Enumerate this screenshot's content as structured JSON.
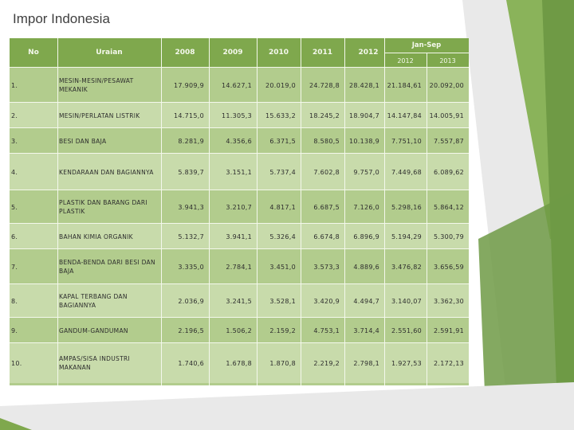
{
  "title": "Impor Indonesia",
  "colors": {
    "header": "#7fa84d",
    "row_a": "#b2cc8d",
    "row_b": "#c8dbab",
    "accent_green": "#6f9a45",
    "light_gray": "#e9e9e9"
  },
  "table": {
    "headers": {
      "no": "No",
      "uraian": "Uraian",
      "y2008": "2008",
      "y2009": "2009",
      "y2010": "2010",
      "y2011": "2011",
      "y2012": "2012",
      "jan_sep": "Jan-Sep",
      "js2012": "2012",
      "js2013": "2013"
    },
    "rows": [
      {
        "no": "1.",
        "uraian": "MESIN-MESIN/PESAWAT MEKANIK",
        "v2008": "17.909,9",
        "v2009": "14.627,1",
        "v2010": "20.019,0",
        "v2011": "24.728,8",
        "v2012": "28.428,1",
        "js2012": "21.184,61",
        "js2013": "20.092,00"
      },
      {
        "no": "2.",
        "uraian": "MESIN/PERLATAN LISTRIK",
        "v2008": "14.715,0",
        "v2009": "11.305,3",
        "v2010": "15.633,2",
        "v2011": "18.245,2",
        "v2012": "18.904,7",
        "js2012": "14.147,84",
        "js2013": "14.005,91"
      },
      {
        "no": "3.",
        "uraian": "BESI DAN BAJA",
        "v2008": "8.281,9",
        "v2009": "4.356,6",
        "v2010": "6.371,5",
        "v2011": "8.580,5",
        "v2012": "10.138,9",
        "js2012": "7.751,10",
        "js2013": "7.557,87"
      },
      {
        "no": "4.",
        "uraian": "KENDARAAN DAN BAGIANNYA",
        "v2008": "5.839,7",
        "v2009": "3.151,1",
        "v2010": "5.737,4",
        "v2011": "7.602,8",
        "v2012": "9.757,0",
        "js2012": "7.449,68",
        "js2013": "6.089,62"
      },
      {
        "no": "5.",
        "uraian": "PLASTIK DAN BARANG DARI PLASTIK",
        "v2008": "3.941,3",
        "v2009": "3.210,7",
        "v2010": "4.817,1",
        "v2011": "6.687,5",
        "v2012": "7.126,0",
        "js2012": "5.298,16",
        "js2013": "5.864,12"
      },
      {
        "no": "6.",
        "uraian": "BAHAN KIMIA ORGANIK",
        "v2008": "5.132,7",
        "v2009": "3.941,1",
        "v2010": "5.326,4",
        "v2011": "6.674,8",
        "v2012": "6.896,9",
        "js2012": "5.194,29",
        "js2013": "5.300,79"
      },
      {
        "no": "7.",
        "uraian": "BENDA-BENDA DARI BESI DAN BAJA",
        "v2008": "3.335,0",
        "v2009": "2.784,1",
        "v2010": "3.451,0",
        "v2011": "3.573,3",
        "v2012": "4.889,6",
        "js2012": "3.476,82",
        "js2013": "3.656,59"
      },
      {
        "no": "8.",
        "uraian": "KAPAL TERBANG DAN BAGIANNYA",
        "v2008": "2.036,9",
        "v2009": "3.241,5",
        "v2010": "3.528,1",
        "v2011": "3.420,9",
        "v2012": "4.494,7",
        "js2012": "3.140,07",
        "js2013": "3.362,30"
      },
      {
        "no": "9.",
        "uraian": "GANDUM-GANDUMAN",
        "v2008": "2.196,5",
        "v2009": "1.506,2",
        "v2010": "2.159,2",
        "v2011": "4.753,1",
        "v2012": "3.714,4",
        "js2012": "2.551,60",
        "js2013": "2.591,91"
      },
      {
        "no": "10.",
        "uraian": "AMPAS/SISA INDUSTRI MAKANAN",
        "v2008": "1.740,6",
        "v2009": "1.678,8",
        "v2010": "1.870,8",
        "v2011": "2.219,2",
        "v2012": "2.798,1",
        "js2012": "1.927,53",
        "js2013": "2.172,13"
      }
    ]
  }
}
